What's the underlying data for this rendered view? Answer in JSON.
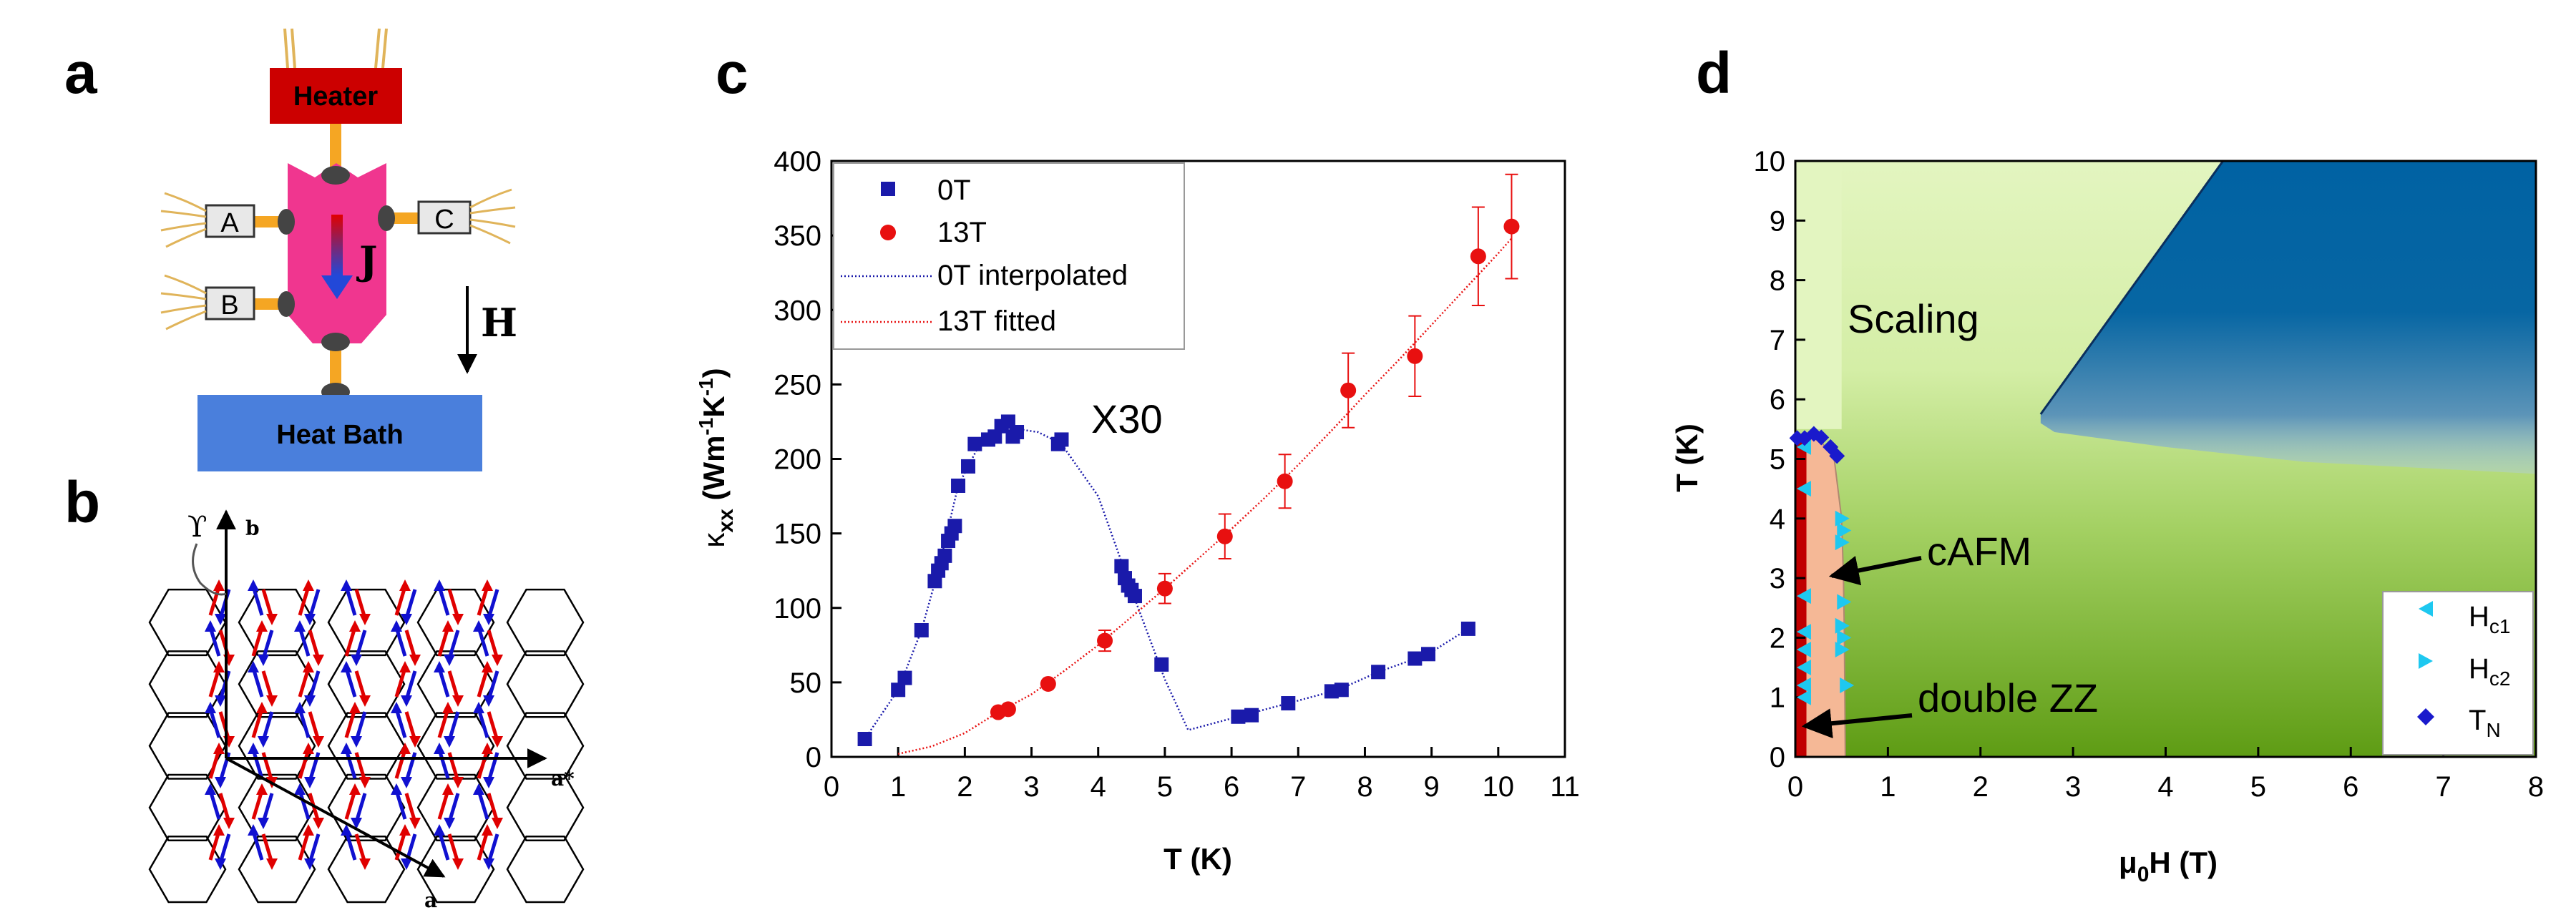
{
  "panels": {
    "a": {
      "letter": "a",
      "heater": "Heater",
      "heat_bath": "Heat Bath",
      "contacts": [
        "A",
        "B",
        "C"
      ],
      "current_label": "J",
      "field_label": "H",
      "colors": {
        "heater": "#cc0000",
        "heat_bath": "#4a7fdc",
        "sample": "#f0368f",
        "leads": "#f5a623",
        "wire": "#e0b45a"
      }
    },
    "b": {
      "letter": "b",
      "axis_b": "b",
      "axis_astar": "a*",
      "axis_a": "a",
      "gamma": "ϒ",
      "colors": {
        "up": "#e00000",
        "down": "#1010d0"
      }
    },
    "c": {
      "letter": "c",
      "annotation": "X30",
      "ylabel_main": "κ",
      "ylabel_sub": "xx",
      "ylabel_units": " (Wm",
      "ylabel_exp1": "-1",
      "ylabel_mid": "K",
      "ylabel_exp2": "-1",
      "ylabel_close": ")",
      "legend_0T": "0T",
      "legend_13T": "13T",
      "legend_0T_line": "0T interpolated",
      "legend_13T_line": "13T fitted"
    },
    "d": {
      "letter": "d",
      "scaling": "Scaling",
      "cafm": "cAFM",
      "double_zz": "double ZZ",
      "legend": [
        {
          "main": "H",
          "sub": "c1"
        },
        {
          "main": "H",
          "sub": "c2"
        },
        {
          "main": "T",
          "sub": "N"
        }
      ],
      "xlabel_pre": "μ",
      "xlabel_sub": "0",
      "xlabel_post": "H (T)",
      "ylabel": "T (K)",
      "colors": {
        "scaling": "#e3f5c0",
        "low_field": "#6aa51d",
        "dark_region": "#0062a3",
        "cafm": "#f5b896",
        "double_zz": "#c00000",
        "hc": "#1ec8f0",
        "tn": "#1a1acc"
      }
    }
  },
  "chart_data": [
    {
      "panel": "c",
      "type": "scatter",
      "title": "",
      "xlabel": "T (K)",
      "ylabel": "κxx (Wm-1K-1)",
      "xlim": [
        0,
        11
      ],
      "ylim": [
        0,
        400
      ],
      "xticks": [
        "0",
        "1",
        "2",
        "3",
        "4",
        "5",
        "6",
        "7",
        "8",
        "9",
        "10",
        "11"
      ],
      "yticks": [
        "0",
        "50",
        "100",
        "150",
        "200",
        "250",
        "300",
        "350",
        "400"
      ],
      "series": [
        {
          "name": "0T",
          "marker": "square",
          "color": "#1a1aaa",
          "x": [
            0.5,
            1.0,
            1.1,
            1.35,
            1.55,
            1.6,
            1.65,
            1.7,
            1.75,
            1.8,
            1.85,
            1.9,
            2.05,
            2.15,
            2.35,
            2.45,
            2.55,
            2.65,
            2.72,
            2.78,
            3.4,
            3.45,
            4.35,
            4.4,
            4.45,
            4.5,
            4.55,
            4.95,
            6.1,
            6.3,
            6.85,
            7.5,
            7.65,
            8.2,
            8.75,
            8.95,
            9.55
          ],
          "y": [
            12,
            45,
            53,
            85,
            118,
            125,
            130,
            135,
            145,
            150,
            155,
            182,
            195,
            210,
            213,
            215,
            222,
            225,
            215,
            218,
            210,
            213,
            128,
            120,
            115,
            112,
            108,
            62,
            27,
            28,
            36,
            44,
            45,
            57,
            66,
            69,
            86
          ]
        },
        {
          "name": "13T",
          "marker": "circle",
          "color": "#e81010",
          "x": [
            2.5,
            2.65,
            3.25,
            4.1,
            5.0,
            5.9,
            6.8,
            7.75,
            8.75,
            9.7,
            10.2
          ],
          "y": [
            30,
            32,
            49,
            78,
            113,
            148,
            185,
            246,
            269,
            336,
            356
          ],
          "yerr": [
            0,
            0,
            0,
            7,
            10,
            15,
            18,
            25,
            27,
            33,
            35
          ]
        },
        {
          "name": "0T interpolated",
          "line": "dotted",
          "color": "#1a1aaa",
          "x": [
            0.5,
            1.0,
            1.35,
            1.6,
            1.9,
            2.2,
            2.6,
            2.8,
            3.1,
            3.45,
            4.0,
            4.5,
            5.0,
            5.35,
            6.1,
            6.85,
            7.6,
            8.2,
            8.95,
            9.55
          ],
          "y": [
            12,
            45,
            85,
            125,
            182,
            208,
            222,
            220,
            218,
            210,
            175,
            112,
            52,
            18,
            27,
            36,
            45,
            57,
            69,
            86
          ]
        },
        {
          "name": "13T fitted",
          "line": "dotted",
          "color": "#e81010",
          "x": [
            1.0,
            1.5,
            2.0,
            2.5,
            3.0,
            3.5,
            4.0,
            4.5,
            5.0,
            5.5,
            6.0,
            6.5,
            7.0,
            7.5,
            8.0,
            8.5,
            9.0,
            9.5,
            10.0,
            10.2
          ],
          "y": [
            2,
            7,
            16,
            30,
            42,
            58,
            75,
            94,
            113,
            133,
            153,
            174,
            196,
            219,
            243,
            266,
            290,
            314,
            338,
            348
          ]
        }
      ]
    },
    {
      "panel": "d",
      "type": "scatter",
      "title": "",
      "xlabel": "μ0H (T)",
      "ylabel": "T (K)",
      "xlim": [
        0,
        8
      ],
      "ylim": [
        0,
        10
      ],
      "xticks": [
        "0",
        "1",
        "2",
        "3",
        "4",
        "5",
        "6",
        "7",
        "8"
      ],
      "yticks": [
        "0",
        "1",
        "2",
        "3",
        "4",
        "5",
        "6",
        "7",
        "8",
        "9",
        "10"
      ],
      "regions": {
        "scaling": {
          "label": "Scaling"
        },
        "dark_boundary": {
          "x": [
            2.65,
            4.62
          ],
          "y": [
            5.75,
            10
          ]
        },
        "dark_lower_edge": {
          "x": [
            2.65,
            2.8,
            4.0,
            5.5,
            8.0
          ],
          "y": [
            5.6,
            5.45,
            5.2,
            4.95,
            4.75
          ]
        },
        "cafm_boundary": {
          "x": [
            0.08,
            0.25,
            0.42,
            0.5,
            0.52,
            0.53,
            0.54,
            0.08
          ],
          "y": [
            5.4,
            5.35,
            5.0,
            4.0,
            3.0,
            2.0,
            0,
            0
          ]
        },
        "double_zz_boundary": {
          "x": [
            0,
            0.12,
            0.12,
            0
          ],
          "y": [
            5.4,
            5.4,
            0,
            0
          ]
        }
      },
      "series": [
        {
          "name": "Hc1",
          "marker": "triangle-left",
          "color": "#1ec8f0",
          "x": [
            0.1,
            0.1,
            0.1,
            0.1,
            0.1,
            0.1,
            0.1,
            0.1
          ],
          "y": [
            5.2,
            4.5,
            2.7,
            2.1,
            1.8,
            1.5,
            1.2,
            1.0
          ]
        },
        {
          "name": "Hc2",
          "marker": "triangle-right",
          "color": "#1ec8f0",
          "x": [
            0.5,
            0.52,
            0.5,
            0.52,
            0.5,
            0.52,
            0.5,
            0.55
          ],
          "y": [
            4.0,
            3.8,
            3.6,
            2.6,
            2.2,
            2.0,
            1.8,
            1.2
          ]
        },
        {
          "name": "TN",
          "marker": "diamond",
          "color": "#1a1acc",
          "x": [
            0.02,
            0.1,
            0.2,
            0.28,
            0.38,
            0.45
          ],
          "y": [
            5.35,
            5.35,
            5.42,
            5.36,
            5.2,
            5.05
          ]
        }
      ]
    }
  ]
}
